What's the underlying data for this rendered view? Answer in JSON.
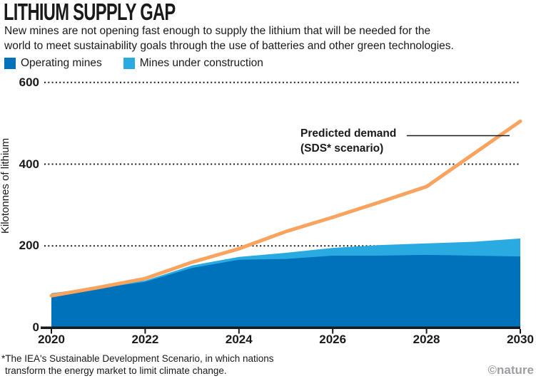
{
  "title": "LITHIUM SUPPLY GAP",
  "subtitle_lines": [
    "New mines are not opening fast enough to supply the lithium that will be needed for the",
    "world to meet sustainability goals through the use of batteries and other green technologies."
  ],
  "legend": {
    "items": [
      {
        "label": "Operating mines",
        "color": "#0072bc"
      },
      {
        "label": "Mines under construction",
        "color": "#29abe2"
      }
    ]
  },
  "annotation": {
    "line1": "Predicted demand",
    "line2": "(SDS* scenario)"
  },
  "footnote_lines": [
    "*The IEA's Sustainable Development Scenario, in which nations",
    "transform the energy market to limit climate change."
  ],
  "credit": "©nature",
  "colors": {
    "text": "#1a1a1a",
    "credit": "#9d9fa2",
    "axis": "#1a1a1a"
  },
  "chart_data": {
    "type": "area",
    "title": "LITHIUM SUPPLY GAP",
    "x": [
      2020,
      2021,
      2022,
      2023,
      2024,
      2025,
      2026,
      2027,
      2028,
      2029,
      2030
    ],
    "series": [
      {
        "name": "Operating mines",
        "type": "area",
        "color": "#0072bc",
        "values": [
          80,
          96,
          112,
          146,
          166,
          168,
          176,
          176,
          178,
          176,
          174
        ]
      },
      {
        "name": "Mines under construction",
        "type": "area-stacked-on-previous",
        "color": "#29abe2",
        "values": [
          4,
          3,
          3,
          6,
          7,
          15,
          19,
          26,
          28,
          34,
          44
        ]
      },
      {
        "name": "Predicted demand (SDS* scenario)",
        "type": "line",
        "color": "#f9a35f",
        "values": [
          78,
          98,
          120,
          160,
          193,
          235,
          270,
          307,
          345,
          425,
          505
        ]
      }
    ],
    "xlabel": "",
    "ylabel": "Kilotonnes of lithium",
    "units": "kilotonnes of lithium",
    "ylim": [
      0,
      620
    ],
    "y_ticks": [
      0,
      200,
      400,
      600
    ],
    "x_ticks": [
      2020,
      2022,
      2024,
      2026,
      2028,
      2030
    ],
    "grid": "horizontal-dotted",
    "legend_position": "top-left"
  }
}
